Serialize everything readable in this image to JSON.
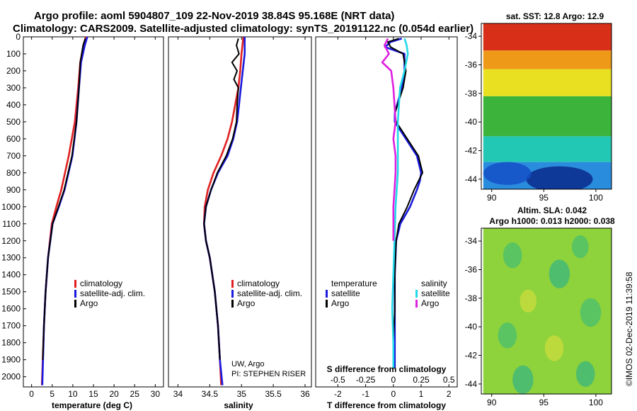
{
  "title": {
    "line1": "Argo profile: aoml 5904807_109 22-Nov-2019 38.84S 95.168E (NRT data)",
    "line2": "Climatology: CARS2009. Satellite-adjusted climatology: synTS_20191122.nc (0.054d earlier)"
  },
  "colors": {
    "climatology": "#e02020",
    "satellite": "#1a1ae0",
    "argo": "#000000",
    "sal_satellite": "#22d8e8",
    "sal_argo": "#e020e0"
  },
  "chart_data": [
    {
      "type": "line",
      "name": "temperature",
      "xlabel": "temperature (deg C)",
      "ylabel": "",
      "xlim": [
        -2,
        32
      ],
      "ylim": [
        2060,
        0
      ],
      "xticks": [
        0,
        5,
        10,
        15,
        20,
        25,
        30
      ],
      "yticks": [
        0,
        100,
        200,
        300,
        400,
        500,
        600,
        700,
        800,
        900,
        1000,
        1100,
        1200,
        1300,
        1400,
        1500,
        1600,
        1700,
        1800,
        1900,
        2000
      ],
      "legend": [
        "climatology",
        "satellite-adj. clim.",
        "Argo"
      ],
      "series": [
        {
          "name": "climatology",
          "color": "#e02020",
          "depth": [
            0,
            50,
            150,
            300,
            500,
            700,
            900,
            1000,
            1100,
            1300,
            1500,
            1700,
            2050
          ],
          "values": [
            13.2,
            12.6,
            11.8,
            11.3,
            10.5,
            9.0,
            7.2,
            6.0,
            4.9,
            4.0,
            3.4,
            3.0,
            2.5
          ]
        },
        {
          "name": "satellite-adj. clim.",
          "color": "#1a1ae0",
          "depth": [
            0,
            50,
            150,
            300,
            500,
            700,
            900,
            1000,
            1100,
            1300,
            1500,
            1700,
            2050
          ],
          "values": [
            13.5,
            12.9,
            12.0,
            11.5,
            10.9,
            9.9,
            8.0,
            6.6,
            5.1,
            4.0,
            3.4,
            3.0,
            2.6
          ]
        },
        {
          "name": "Argo",
          "color": "#000000",
          "depth": [
            10,
            50,
            150,
            300,
            500,
            700,
            900,
            1000,
            1100,
            1300,
            1500,
            1700,
            1900
          ],
          "values": [
            13.0,
            12.5,
            11.8,
            11.5,
            10.9,
            9.8,
            7.9,
            6.5,
            5.1,
            4.0,
            3.4,
            3.0,
            2.7
          ]
        }
      ]
    },
    {
      "type": "line",
      "name": "salinity",
      "xlabel": "salinity",
      "xlim": [
        33.85,
        36.1
      ],
      "ylim": [
        2060,
        0
      ],
      "xticks": [
        34,
        34.5,
        35,
        35.5,
        36
      ],
      "legend": [
        "climatology",
        "satellite-adj. clim.",
        "Argo"
      ],
      "series": [
        {
          "name": "climatology",
          "color": "#e02020",
          "depth": [
            0,
            100,
            200,
            300,
            400,
            500,
            600,
            700,
            800,
            900,
            1000,
            1100,
            1200,
            1300,
            1500,
            1700,
            1900,
            2050
          ],
          "values": [
            35.03,
            35.0,
            34.98,
            34.95,
            34.9,
            34.85,
            34.78,
            34.68,
            34.56,
            34.47,
            34.42,
            34.41,
            34.44,
            34.5,
            34.58,
            34.63,
            34.66,
            34.68
          ]
        },
        {
          "name": "satellite-adj. clim.",
          "color": "#1a1ae0",
          "depth": [
            0,
            100,
            200,
            300,
            400,
            500,
            600,
            700,
            800,
            900,
            1000,
            1100,
            1200,
            1300,
            1500,
            1700,
            1900,
            2050
          ],
          "values": [
            35.05,
            35.05,
            35.02,
            34.99,
            34.96,
            34.93,
            34.87,
            34.78,
            34.63,
            34.52,
            34.44,
            34.41,
            34.44,
            34.5,
            34.58,
            34.63,
            34.66,
            34.7
          ]
        },
        {
          "name": "Argo",
          "color": "#000000",
          "depth": [
            10,
            50,
            100,
            150,
            200,
            250,
            300,
            400,
            500,
            600,
            700,
            800,
            900,
            1000,
            1100,
            1200,
            1300,
            1500,
            1700,
            1900
          ],
          "values": [
            34.95,
            34.92,
            34.96,
            34.85,
            34.93,
            34.88,
            34.95,
            34.93,
            34.92,
            34.86,
            34.76,
            34.62,
            34.52,
            34.44,
            34.41,
            34.44,
            34.5,
            34.58,
            34.63,
            34.66
          ]
        }
      ],
      "annotations": [
        "UW, Argo",
        "PI: STEPHEN RISER"
      ]
    },
    {
      "type": "line",
      "name": "difference",
      "xlabel": "T difference from climatology",
      "xlabel_top": "S difference from climatology",
      "xlim": [
        -2.8,
        2.3
      ],
      "ylim": [
        2060,
        0
      ],
      "xticks": [
        -2,
        -1,
        0,
        1,
        2
      ],
      "xticks_S": [
        -0.5,
        -0.25,
        0,
        0.25,
        0.5
      ],
      "legend_temperature_title": "temperature",
      "legend_salinity_title": "salinity",
      "legend": [
        "satellite",
        "Argo",
        "satellite",
        "Argo"
      ],
      "series": [
        {
          "name": "T satellite",
          "color": "#1a1ae0",
          "depth": [
            10,
            30,
            60,
            100,
            200,
            300,
            450,
            500,
            600,
            700,
            800,
            850,
            900,
            1000,
            1100,
            1200,
            1400,
            1600,
            1800,
            1950
          ],
          "values": [
            0.3,
            -0.1,
            -0.3,
            0.4,
            0.4,
            0.3,
            0.05,
            0.05,
            0.45,
            0.85,
            1.0,
            0.95,
            0.85,
            0.6,
            0.25,
            0.1,
            0.05,
            0.05,
            0.05,
            0.05
          ]
        },
        {
          "name": "T Argo",
          "color": "#000000",
          "depth": [
            10,
            30,
            60,
            100,
            200,
            300,
            450,
            500,
            600,
            700,
            800,
            850,
            900,
            1000,
            1100,
            1200,
            1400,
            1600,
            1800,
            1950
          ],
          "values": [
            0.2,
            -0.2,
            -0.1,
            0.35,
            0.45,
            0.35,
            0.05,
            0.1,
            0.5,
            0.9,
            1.05,
            0.9,
            0.75,
            0.5,
            0.2,
            0.1,
            0.05,
            0.05,
            0.0,
            0.0
          ]
        },
        {
          "name": "S satellite",
          "color": "#22d8e8",
          "depth": [
            10,
            50,
            100,
            200,
            300,
            400,
            500,
            600,
            700,
            800,
            900,
            1000,
            1200,
            1400,
            1600,
            1800,
            1950
          ],
          "values": [
            0.1,
            0.12,
            0.13,
            0.1,
            0.06,
            0.05,
            0.04,
            0.04,
            0.04,
            0.04,
            0.03,
            0.02,
            0.01,
            0.0,
            -0.01,
            0.0,
            0.0
          ]
        },
        {
          "name": "S Argo",
          "color": "#e020e0",
          "depth": [
            10,
            50,
            100,
            150,
            200,
            300,
            400,
            500,
            600,
            700,
            800,
            900,
            1000,
            1200
          ],
          "values": [
            -0.05,
            -0.08,
            -0.04,
            -0.1,
            -0.02,
            0.0,
            0.01,
            0.02,
            0.0,
            0.02,
            0.02,
            0.01,
            0.0,
            0.0
          ]
        }
      ]
    },
    {
      "type": "heatmap",
      "name": "sst_map",
      "title": "sat. SST: 12.8 Argo: 12.9",
      "xlim": [
        89,
        101.5
      ],
      "ylim": [
        -44.7,
        -33.1
      ],
      "xticks": [
        90,
        95,
        100
      ],
      "yticks": [
        -34,
        -36,
        -38,
        -40,
        -42,
        -44
      ],
      "bands": [
        {
          "lat_from": -33.1,
          "lat_to": -35.0,
          "color": "#d83018"
        },
        {
          "lat_from": -35.0,
          "lat_to": -36.3,
          "color": "#ee9a18"
        },
        {
          "lat_from": -36.3,
          "lat_to": -38.2,
          "color": "#e8e020"
        },
        {
          "lat_from": -38.2,
          "lat_to": -41.0,
          "color": "#3cb43c"
        },
        {
          "lat_from": -41.0,
          "lat_to": -42.8,
          "color": "#22c8b4"
        },
        {
          "lat_from": -42.8,
          "lat_to": -44.7,
          "color": "#2a8cdc"
        }
      ],
      "patches": [
        {
          "lon": 96.5,
          "lat": -44.0,
          "rlon": 3.2,
          "rlat": 0.9,
          "color": "#0a2a8c"
        },
        {
          "lon": 91.5,
          "lat": -43.6,
          "rlon": 2.3,
          "rlat": 0.8,
          "color": "#1450c8"
        }
      ]
    },
    {
      "type": "heatmap",
      "name": "sla_map",
      "title_line1": "Altim. SLA: 0.042",
      "title_line2": "Argo h1000: 0.013 h2000: 0.038",
      "xlim": [
        89,
        101.5
      ],
      "ylim": [
        -44.7,
        -33.1
      ],
      "xticks": [
        90,
        95,
        100
      ],
      "yticks": [
        -34,
        -36,
        -38,
        -40,
        -42,
        -44
      ],
      "background": "#8ed23c",
      "spots": [
        {
          "lon": 92.0,
          "lat": -35.0,
          "r": 0.9,
          "color": "#4cc06a"
        },
        {
          "lon": 98.5,
          "lat": -34.4,
          "r": 0.8,
          "color": "#4cc06a"
        },
        {
          "lon": 96.5,
          "lat": -36.3,
          "r": 1.0,
          "color": "#40b87a"
        },
        {
          "lon": 93.5,
          "lat": -38.2,
          "r": 0.8,
          "color": "#c8dc3c"
        },
        {
          "lon": 99.5,
          "lat": -39.0,
          "r": 1.0,
          "color": "#4cc06a"
        },
        {
          "lon": 91.5,
          "lat": -40.6,
          "r": 0.9,
          "color": "#4cc06a"
        },
        {
          "lon": 96.0,
          "lat": -41.5,
          "r": 0.9,
          "color": "#c8dc3c"
        },
        {
          "lon": 93.0,
          "lat": -43.7,
          "r": 1.0,
          "color": "#40b87a"
        },
        {
          "lon": 99.0,
          "lat": -43.3,
          "r": 0.9,
          "color": "#40b87a"
        }
      ]
    }
  ],
  "credit": "©IMOS 02-Dec-2019 11:39:58"
}
